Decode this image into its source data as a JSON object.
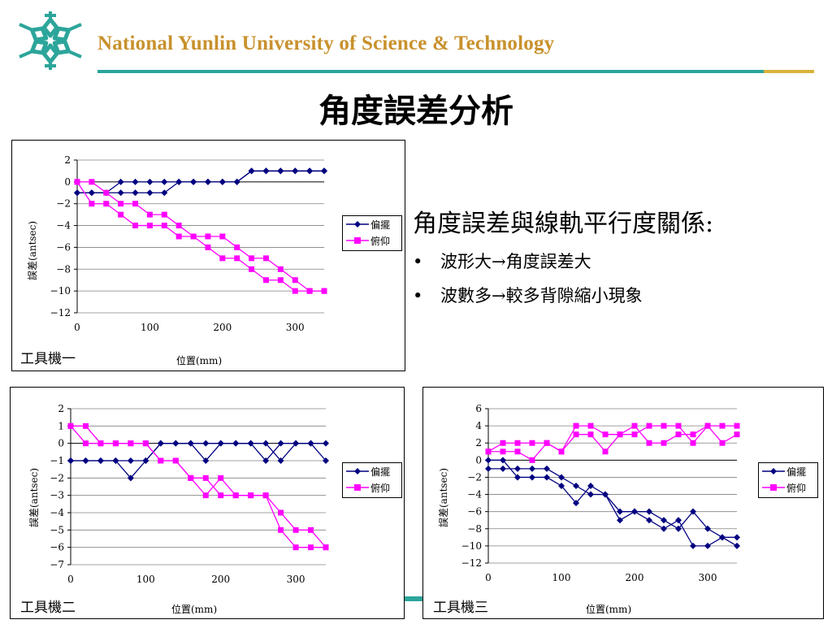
{
  "header": {
    "university": "National Yunlin University of Science & Technology",
    "logo_icon": "snowflake-logo-icon",
    "colors": {
      "teal": "#2ca59a",
      "gold": "#c8912c"
    }
  },
  "slide_title": "角度誤差分析",
  "notes": {
    "heading": "角度誤差與線軌平行度關係:",
    "bullet_symbol": "•",
    "items": [
      "波形大→角度誤差大",
      "波數多→較多背隙縮小現象"
    ]
  },
  "series_colors": {
    "yaw": "#000080",
    "pitch": "#ff00ff"
  },
  "chart_data": [
    {
      "type": "line",
      "machine_label": "工具機一",
      "xlabel": "位置(mm)",
      "ylabel": "誤差(antsec)",
      "xlim": [
        0,
        340
      ],
      "ylim": [
        -12,
        2
      ],
      "xticks": [
        0,
        100,
        200,
        300
      ],
      "yticks": [
        2,
        0,
        -2,
        -4,
        -6,
        -8,
        -10,
        -12
      ],
      "grid": true,
      "legend": "right",
      "series": [
        {
          "name": "偏擺",
          "marker": "diamond",
          "lines": [
            {
              "x": [
                0,
                20,
                40,
                60,
                80,
                100,
                120,
                140,
                160,
                180,
                200,
                220,
                240,
                260,
                280,
                300,
                320,
                340
              ],
              "y": [
                -1,
                -1,
                -1,
                0,
                0,
                0,
                0,
                0,
                0,
                0,
                0,
                0,
                1,
                1,
                1,
                1,
                1,
                1
              ]
            },
            {
              "x": [
                0,
                20,
                40,
                60,
                80,
                100,
                120,
                140,
                160,
                180,
                200,
                220,
                240,
                260,
                280,
                300,
                320,
                340
              ],
              "y": [
                -1,
                -1,
                -1,
                -1,
                -1,
                -1,
                -1,
                0,
                0,
                0,
                0,
                0,
                1,
                1,
                1,
                1,
                1,
                1
              ]
            }
          ]
        },
        {
          "name": "俯仰",
          "marker": "square",
          "lines": [
            {
              "x": [
                0,
                20,
                40,
                60,
                80,
                100,
                120,
                140,
                160,
                180,
                200,
                220,
                240,
                260,
                280,
                300,
                320,
                340
              ],
              "y": [
                0,
                0,
                -1,
                -2,
                -2,
                -3,
                -3,
                -4,
                -5,
                -5,
                -5,
                -6,
                -7,
                -7,
                -8,
                -9,
                -10,
                -10
              ]
            },
            {
              "x": [
                0,
                20,
                40,
                60,
                80,
                100,
                120,
                140,
                160,
                180,
                200,
                220,
                240,
                260,
                280,
                300,
                320,
                340
              ],
              "y": [
                0,
                -2,
                -2,
                -3,
                -4,
                -4,
                -4,
                -5,
                -5,
                -6,
                -7,
                -7,
                -8,
                -9,
                -9,
                -10,
                -10,
                -10
              ]
            }
          ]
        }
      ]
    },
    {
      "type": "line",
      "machine_label": "工具機二",
      "xlabel": "位置(mm)",
      "ylabel": "誤差(antsec)",
      "xlim": [
        0,
        340
      ],
      "ylim": [
        -7,
        2
      ],
      "xticks": [
        0,
        100,
        200,
        300
      ],
      "yticks": [
        2,
        1,
        0,
        -1,
        -2,
        -3,
        -4,
        -5,
        -6,
        -7
      ],
      "grid": true,
      "legend": "right",
      "series": [
        {
          "name": "偏擺",
          "marker": "diamond",
          "lines": [
            {
              "x": [
                0,
                20,
                40,
                60,
                80,
                100,
                120,
                140,
                160,
                180,
                200,
                220,
                240,
                260,
                280,
                300,
                320,
                340
              ],
              "y": [
                -1,
                -1,
                -1,
                -1,
                -2,
                -1,
                0,
                0,
                0,
                0,
                0,
                0,
                0,
                0,
                -1,
                0,
                0,
                0
              ]
            },
            {
              "x": [
                0,
                20,
                40,
                60,
                80,
                100,
                120,
                140,
                160,
                180,
                200,
                220,
                240,
                260,
                280,
                300,
                320,
                340
              ],
              "y": [
                -1,
                -1,
                -1,
                -1,
                -1,
                -1,
                0,
                0,
                0,
                -1,
                0,
                0,
                0,
                -1,
                0,
                0,
                0,
                -1
              ]
            }
          ]
        },
        {
          "name": "俯仰",
          "marker": "square",
          "lines": [
            {
              "x": [
                0,
                20,
                40,
                60,
                80,
                100,
                120,
                140,
                160,
                180,
                200,
                220,
                240,
                260,
                280,
                300,
                320,
                340
              ],
              "y": [
                1,
                1,
                0,
                0,
                0,
                0,
                -1,
                -1,
                -2,
                -2,
                -3,
                -3,
                -3,
                -3,
                -5,
                -6,
                -6,
                -6
              ]
            },
            {
              "x": [
                0,
                20,
                40,
                60,
                80,
                100,
                120,
                140,
                160,
                180,
                200,
                220,
                240,
                260,
                280,
                300,
                320,
                340
              ],
              "y": [
                1,
                0,
                0,
                0,
                0,
                0,
                -1,
                -1,
                -2,
                -3,
                -2,
                -3,
                -3,
                -3,
                -4,
                -5,
                -5,
                -6
              ]
            }
          ]
        }
      ]
    },
    {
      "type": "line",
      "machine_label": "工具機三",
      "xlabel": "位置(mm)",
      "ylabel": "誤差(antsec)",
      "xlim": [
        0,
        340
      ],
      "ylim": [
        -12,
        6
      ],
      "xticks": [
        0,
        100,
        200,
        300
      ],
      "yticks": [
        6,
        4,
        2,
        0,
        -2,
        -4,
        -6,
        -8,
        -10,
        -12
      ],
      "grid": true,
      "legend": "right",
      "series": [
        {
          "name": "偏擺",
          "marker": "diamond",
          "lines": [
            {
              "x": [
                0,
                20,
                40,
                60,
                80,
                100,
                120,
                140,
                160,
                180,
                200,
                220,
                240,
                260,
                280,
                300,
                320,
                340
              ],
              "y": [
                0,
                0,
                -2,
                -2,
                -2,
                -3,
                -5,
                -3,
                -4,
                -7,
                -6,
                -7,
                -8,
                -7,
                -10,
                -10,
                -9,
                -9
              ]
            },
            {
              "x": [
                0,
                20,
                40,
                60,
                80,
                100,
                120,
                140,
                160,
                180,
                200,
                220,
                240,
                260,
                280,
                300,
                320,
                340
              ],
              "y": [
                -1,
                -1,
                -1,
                -1,
                -1,
                -2,
                -3,
                -4,
                -4,
                -6,
                -6,
                -6,
                -7,
                -8,
                -6,
                -8,
                -9,
                -10
              ]
            }
          ]
        },
        {
          "name": "俯仰",
          "marker": "square",
          "lines": [
            {
              "x": [
                0,
                20,
                40,
                60,
                80,
                100,
                120,
                140,
                160,
                180,
                200,
                220,
                240,
                260,
                280,
                300,
                320,
                340
              ],
              "y": [
                1,
                2,
                2,
                2,
                2,
                1,
                4,
                4,
                3,
                3,
                3,
                4,
                4,
                4,
                2,
                4,
                4,
                4
              ]
            },
            {
              "x": [
                0,
                20,
                40,
                60,
                80,
                100,
                120,
                140,
                160,
                180,
                200,
                220,
                240,
                260,
                280,
                300,
                320,
                340
              ],
              "y": [
                1,
                1,
                1,
                0,
                2,
                1,
                3,
                3,
                1,
                3,
                4,
                2,
                2,
                3,
                3,
                4,
                2,
                3
              ]
            }
          ]
        }
      ]
    }
  ]
}
